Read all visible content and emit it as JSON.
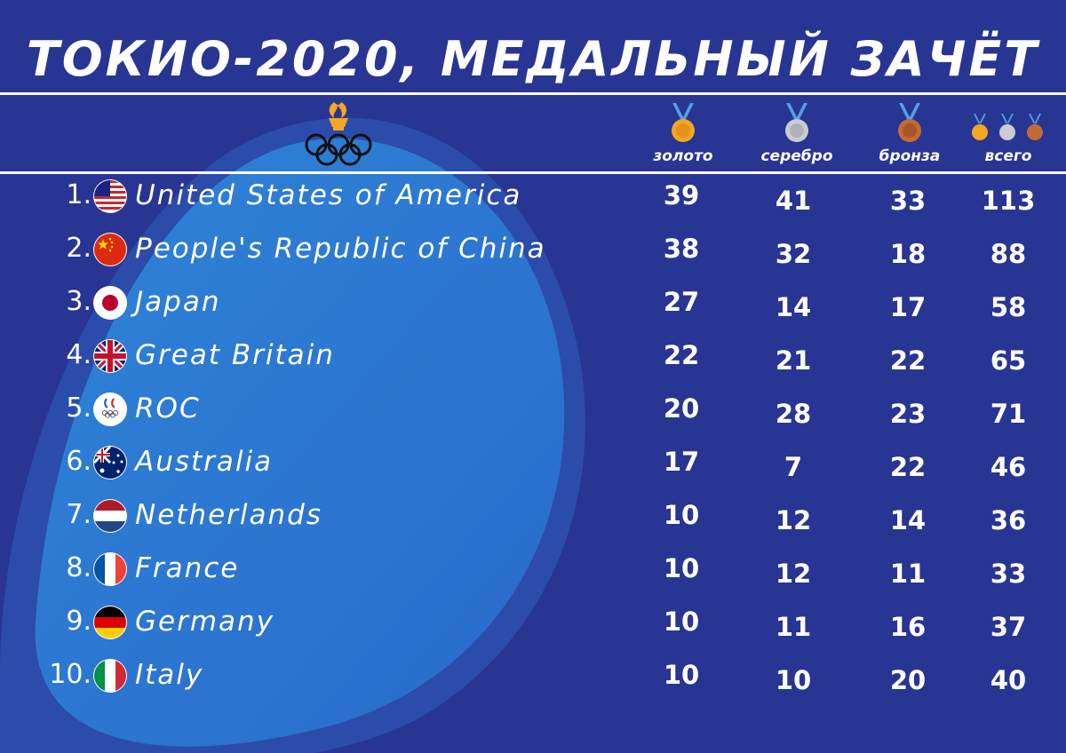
{
  "title": "ТОКИО-2020, МЕДАЛЬНЫЙ ЗАЧЁТ",
  "colors": {
    "background": "#283593",
    "blob_light": "#3391dc",
    "blob_mid": "#2e7bd4",
    "gold": "#f5a623",
    "silver": "#c9ccd1",
    "bronze": "#c46a35",
    "ribbon": "#4fa3e0"
  },
  "header": {
    "logo_icon": "olympic-torch-rings-icon",
    "columns": [
      {
        "key": "gold",
        "label": "золото",
        "icon": "gold-medal-icon"
      },
      {
        "key": "silver",
        "label": "серебро",
        "icon": "silver-medal-icon"
      },
      {
        "key": "bronze",
        "label": "бронза",
        "icon": "bronze-medal-icon"
      },
      {
        "key": "total",
        "label": "всего",
        "icon": "all-medals-icon"
      }
    ]
  },
  "rows": [
    {
      "rank": "1.",
      "country": "United States of America",
      "flag": "usa-flag-icon",
      "gold": "39",
      "silver": "41",
      "bronze": "33",
      "total": "113"
    },
    {
      "rank": "2.",
      "country": "People's Republic of China",
      "flag": "china-flag-icon",
      "gold": "38",
      "silver": "32",
      "bronze": "18",
      "total": "88"
    },
    {
      "rank": "3.",
      "country": "Japan",
      "flag": "japan-flag-icon",
      "gold": "27",
      "silver": "14",
      "bronze": "17",
      "total": "58"
    },
    {
      "rank": "4.",
      "country": "Great Britain",
      "flag": "uk-flag-icon",
      "gold": "22",
      "silver": "21",
      "bronze": "22",
      "total": "65"
    },
    {
      "rank": "5.",
      "country": "ROC",
      "flag": "roc-flag-icon",
      "gold": "20",
      "silver": "28",
      "bronze": "23",
      "total": "71"
    },
    {
      "rank": "6.",
      "country": "Australia",
      "flag": "australia-flag-icon",
      "gold": "17",
      "silver": "7",
      "bronze": "22",
      "total": "46"
    },
    {
      "rank": "7.",
      "country": "Netherlands",
      "flag": "netherlands-flag-icon",
      "gold": "10",
      "silver": "12",
      "bronze": "14",
      "total": "36"
    },
    {
      "rank": "8.",
      "country": "France",
      "flag": "france-flag-icon",
      "gold": "10",
      "silver": "12",
      "bronze": "11",
      "total": "33"
    },
    {
      "rank": "9.",
      "country": "Germany",
      "flag": "germany-flag-icon",
      "gold": "10",
      "silver": "11",
      "bronze": "16",
      "total": "37"
    },
    {
      "rank": "10.",
      "country": "Italy",
      "flag": "italy-flag-icon",
      "gold": "10",
      "silver": "10",
      "bronze": "20",
      "total": "40"
    }
  ]
}
